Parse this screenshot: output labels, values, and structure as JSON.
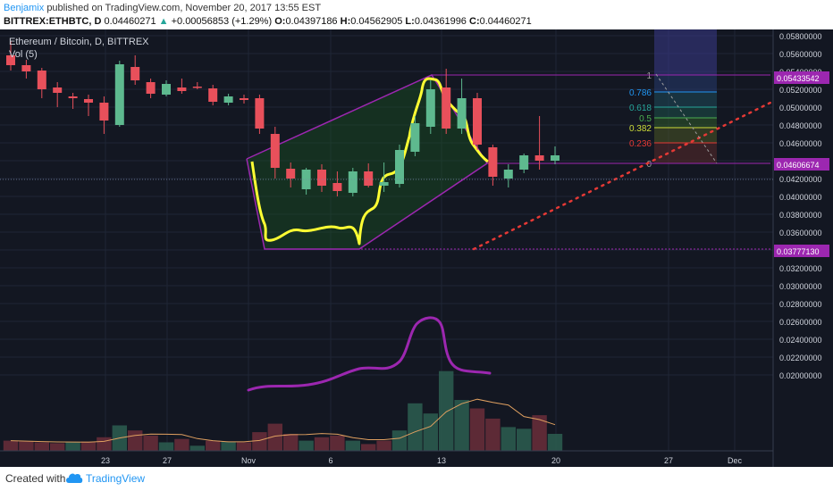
{
  "header": {
    "author": "Benjamix",
    "published_text": "published on TradingView.com, November 20, 2017 13:55 EST",
    "symbol": "BITTREX:ETHBTC, D",
    "last": "0.04460271",
    "change_arrow": "▲",
    "change": "+0.00056853 (+1.29%)",
    "o_label": "O:",
    "o": "0.04397186",
    "h_label": "H:",
    "h": "0.04562905",
    "l_label": "L:",
    "l": "0.04361996",
    "c_label": "C:",
    "c": "0.04460271"
  },
  "legend": {
    "title": "Ethereum / Bitcoin, D, BITTREX",
    "volume": "Vol (5)"
  },
  "footer": {
    "created_with": "Created with",
    "brand": "TradingView",
    "logo_icon": "tradingview-cloud-icon"
  },
  "colors": {
    "background": "#131722",
    "up": "#5eb98f",
    "down": "#e8505b",
    "fib_band": "#3a3a8a",
    "pattern_outline": "#9c27b0",
    "marker": "#ffff33",
    "trend": "#e53935",
    "price_tag": "#9c27b0"
  },
  "chart_data": {
    "type": "candlestick",
    "title": "Ethereum / Bitcoin, D, BITTREX",
    "x_ticks": [
      "23",
      "27",
      "Nov",
      "6",
      "13",
      "20",
      "27",
      "Dec"
    ],
    "y_ticks": [
      "0.05800000",
      "0.05600000",
      "0.05400000",
      "0.05200000",
      "0.05000000",
      "0.04800000",
      "0.04600000",
      "0.04400000",
      "0.04200000",
      "0.04000000",
      "0.03800000",
      "0.03600000",
      "0.03400000",
      "0.03200000",
      "0.03000000",
      "0.02800000",
      "0.02600000",
      "0.02400000",
      "0.02200000",
      "0.02000000"
    ],
    "ylim": [
      0.019,
      0.059
    ],
    "candles": [
      {
        "o": 0.0558,
        "h": 0.0574,
        "l": 0.0541,
        "c": 0.0547
      },
      {
        "o": 0.0547,
        "h": 0.0553,
        "l": 0.0532,
        "c": 0.054
      },
      {
        "o": 0.0541,
        "h": 0.0544,
        "l": 0.051,
        "c": 0.052
      },
      {
        "o": 0.0522,
        "h": 0.0528,
        "l": 0.05,
        "c": 0.0516
      },
      {
        "o": 0.0512,
        "h": 0.0516,
        "l": 0.0498,
        "c": 0.051
      },
      {
        "o": 0.0509,
        "h": 0.0514,
        "l": 0.049,
        "c": 0.0505
      },
      {
        "o": 0.0505,
        "h": 0.0512,
        "l": 0.047,
        "c": 0.0485
      },
      {
        "o": 0.048,
        "h": 0.0552,
        "l": 0.0478,
        "c": 0.0548
      },
      {
        "o": 0.0545,
        "h": 0.0558,
        "l": 0.0525,
        "c": 0.053
      },
      {
        "o": 0.0528,
        "h": 0.0532,
        "l": 0.051,
        "c": 0.0515
      },
      {
        "o": 0.0514,
        "h": 0.053,
        "l": 0.0512,
        "c": 0.0526
      },
      {
        "o": 0.0522,
        "h": 0.0532,
        "l": 0.0515,
        "c": 0.0518
      },
      {
        "o": 0.0523,
        "h": 0.0528,
        "l": 0.052,
        "c": 0.0522
      },
      {
        "o": 0.0521,
        "h": 0.0525,
        "l": 0.0502,
        "c": 0.0506
      },
      {
        "o": 0.0505,
        "h": 0.0515,
        "l": 0.0502,
        "c": 0.0512
      },
      {
        "o": 0.051,
        "h": 0.0514,
        "l": 0.0504,
        "c": 0.0508
      },
      {
        "o": 0.051,
        "h": 0.0514,
        "l": 0.047,
        "c": 0.0476
      },
      {
        "o": 0.047,
        "h": 0.0478,
        "l": 0.042,
        "c": 0.0432
      },
      {
        "o": 0.0431,
        "h": 0.0438,
        "l": 0.041,
        "c": 0.042
      },
      {
        "o": 0.0408,
        "h": 0.0432,
        "l": 0.0402,
        "c": 0.043
      },
      {
        "o": 0.043,
        "h": 0.0436,
        "l": 0.0405,
        "c": 0.0412
      },
      {
        "o": 0.0415,
        "h": 0.0428,
        "l": 0.04,
        "c": 0.0406
      },
      {
        "o": 0.0404,
        "h": 0.0432,
        "l": 0.04,
        "c": 0.0428
      },
      {
        "o": 0.0428,
        "h": 0.0437,
        "l": 0.041,
        "c": 0.0412
      },
      {
        "o": 0.0412,
        "h": 0.0438,
        "l": 0.0405,
        "c": 0.0416
      },
      {
        "o": 0.0414,
        "h": 0.0458,
        "l": 0.041,
        "c": 0.0452
      },
      {
        "o": 0.045,
        "h": 0.049,
        "l": 0.0445,
        "c": 0.0482
      },
      {
        "o": 0.0478,
        "h": 0.053,
        "l": 0.047,
        "c": 0.052
      },
      {
        "o": 0.0522,
        "h": 0.0543,
        "l": 0.047,
        "c": 0.0476
      },
      {
        "o": 0.0476,
        "h": 0.0532,
        "l": 0.047,
        "c": 0.051
      },
      {
        "o": 0.051,
        "h": 0.0516,
        "l": 0.0452,
        "c": 0.0458
      },
      {
        "o": 0.0455,
        "h": 0.0458,
        "l": 0.0412,
        "c": 0.0422
      },
      {
        "o": 0.042,
        "h": 0.0436,
        "l": 0.041,
        "c": 0.043
      },
      {
        "o": 0.043,
        "h": 0.0448,
        "l": 0.0426,
        "c": 0.0446
      },
      {
        "o": 0.0446,
        "h": 0.049,
        "l": 0.043,
        "c": 0.044
      },
      {
        "o": 0.044,
        "h": 0.0456,
        "l": 0.0436,
        "c": 0.0446
      }
    ],
    "volumes": [
      {
        "v": 0.6,
        "up": false
      },
      {
        "v": 0.55,
        "up": false
      },
      {
        "v": 0.5,
        "up": false
      },
      {
        "v": 0.45,
        "up": false
      },
      {
        "v": 0.5,
        "up": true
      },
      {
        "v": 0.55,
        "up": false
      },
      {
        "v": 0.8,
        "up": false
      },
      {
        "v": 1.5,
        "up": true
      },
      {
        "v": 1.2,
        "up": false
      },
      {
        "v": 0.9,
        "up": false
      },
      {
        "v": 0.5,
        "up": true
      },
      {
        "v": 0.7,
        "up": false
      },
      {
        "v": 0.3,
        "up": true
      },
      {
        "v": 0.6,
        "up": false
      },
      {
        "v": 0.55,
        "up": true
      },
      {
        "v": 0.5,
        "up": false
      },
      {
        "v": 1.1,
        "up": false
      },
      {
        "v": 1.6,
        "up": false
      },
      {
        "v": 1.0,
        "up": false
      },
      {
        "v": 0.6,
        "up": true
      },
      {
        "v": 0.8,
        "up": false
      },
      {
        "v": 0.9,
        "up": false
      },
      {
        "v": 0.6,
        "up": true
      },
      {
        "v": 0.4,
        "up": false
      },
      {
        "v": 0.6,
        "up": false
      },
      {
        "v": 1.2,
        "up": true
      },
      {
        "v": 2.8,
        "up": true
      },
      {
        "v": 2.2,
        "up": true
      },
      {
        "v": 4.7,
        "up": true
      },
      {
        "v": 3.0,
        "up": true
      },
      {
        "v": 2.5,
        "up": false
      },
      {
        "v": 1.9,
        "up": false
      },
      {
        "v": 1.4,
        "up": true
      },
      {
        "v": 1.3,
        "up": true
      },
      {
        "v": 2.1,
        "up": false
      },
      {
        "v": 1.0,
        "up": true
      }
    ],
    "price_tags": [
      "0.05433542",
      "0.04606674",
      "0.03777130"
    ],
    "fib_levels": [
      {
        "label": "1",
        "color": "#9e9e9e"
      },
      {
        "label": "0.786",
        "color": "#2196f3"
      },
      {
        "label": "0.618",
        "color": "#26a69a"
      },
      {
        "label": "0.5",
        "color": "#4caf50"
      },
      {
        "label": "0.382",
        "color": "#cddc39"
      },
      {
        "label": "0.236",
        "color": "#e53935"
      },
      {
        "label": "0",
        "color": "#9e9e9e"
      }
    ]
  }
}
